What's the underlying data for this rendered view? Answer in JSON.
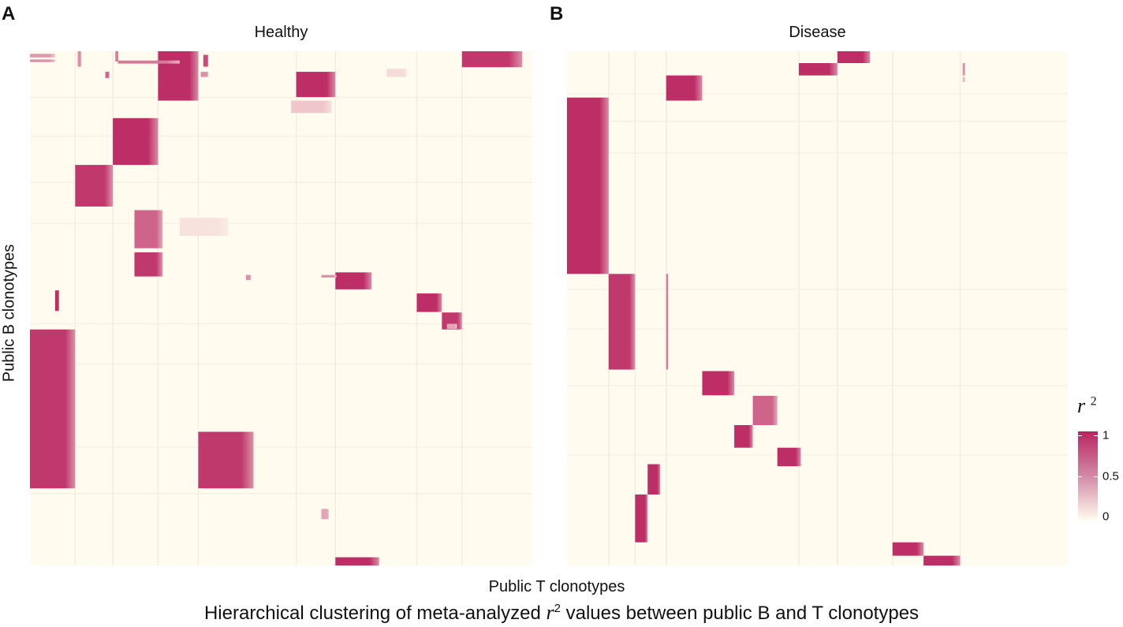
{
  "colors": {
    "low": "#fffcef",
    "mid": "#e9c3cc",
    "high": "#b9235f",
    "background": "#ffffff"
  },
  "panels": [
    {
      "letter": "A",
      "title": "Healthy"
    },
    {
      "letter": "B",
      "title": "Disease"
    }
  ],
  "axes": {
    "ylabel": "Public B clonotypes",
    "xlabel": "Public T clonotypes"
  },
  "caption": {
    "prefix": "Hierarchical clustering of meta-analyzed ",
    "var": "r",
    "sup": "2",
    "suffix": " values between public B and T clonotypes"
  },
  "legend": {
    "title": "r",
    "title_sup": "2",
    "ticks": [
      {
        "value": 1,
        "label": "1"
      },
      {
        "value": 0.5,
        "label": "0.5"
      },
      {
        "value": 0,
        "label": "0"
      }
    ]
  },
  "chart_data": [
    {
      "type": "heatmap",
      "title": "Healthy",
      "xlabel": "Public T clonotypes",
      "ylabel": "Public B clonotypes",
      "value_range": [
        0,
        1
      ],
      "x_range": [
        0,
        1
      ],
      "y_range": [
        0,
        1
      ],
      "clusters": [
        {
          "x": [
            0.0,
            0.09
          ],
          "y": [
            0.541,
            0.85
          ],
          "value": 0.9
        },
        {
          "x": [
            0.255,
            0.335
          ],
          "y": [
            0.0,
            0.096
          ],
          "value": 0.95
        },
        {
          "x": [
            0.09,
            0.165
          ],
          "y": [
            0.221,
            0.302
          ],
          "value": 0.9
        },
        {
          "x": [
            0.165,
            0.255
          ],
          "y": [
            0.13,
            0.221
          ],
          "value": 0.95
        },
        {
          "x": [
            0.335,
            0.445
          ],
          "y": [
            0.74,
            0.85
          ],
          "value": 0.9
        },
        {
          "x": [
            0.53,
            0.608
          ],
          "y": [
            0.04,
            0.089
          ],
          "value": 0.95
        },
        {
          "x": [
            0.208,
            0.264
          ],
          "y": [
            0.309,
            0.383
          ],
          "value": 0.7
        },
        {
          "x": [
            0.208,
            0.264
          ],
          "y": [
            0.391,
            0.438
          ],
          "value": 0.9
        },
        {
          "x": [
            0.608,
            0.695
          ],
          "y": [
            0.984,
            1.0
          ],
          "value": 0.95
        },
        {
          "x": [
            0.608,
            0.68
          ],
          "y": [
            0.43,
            0.463
          ],
          "value": 0.95
        },
        {
          "x": [
            0.77,
            0.82
          ],
          "y": [
            0.471,
            0.507
          ],
          "value": 0.95
        },
        {
          "x": [
            0.82,
            0.86
          ],
          "y": [
            0.508,
            0.541
          ],
          "value": 0.9
        },
        {
          "x": [
            0.86,
            0.98
          ],
          "y": [
            0.0,
            0.031
          ],
          "value": 0.9
        },
        {
          "x": [
            0.175,
            0.298
          ],
          "y": [
            0.018,
            0.024
          ],
          "value": 0.6
        },
        {
          "x": [
            0.0,
            0.05
          ],
          "y": [
            0.005,
            0.012
          ],
          "value": 0.45
        },
        {
          "x": [
            0.0,
            0.05
          ],
          "y": [
            0.016,
            0.021
          ],
          "value": 0.5
        },
        {
          "x": [
            0.52,
            0.6
          ],
          "y": [
            0.096,
            0.12
          ],
          "value": 0.25
        },
        {
          "x": [
            0.298,
            0.395
          ],
          "y": [
            0.324,
            0.359
          ],
          "value": 0.12
        },
        {
          "x": [
            0.71,
            0.75
          ],
          "y": [
            0.034,
            0.05
          ],
          "value": 0.15
        },
        {
          "x": [
            0.05,
            0.058
          ],
          "y": [
            0.465,
            0.505
          ],
          "value": 0.95
        },
        {
          "x": [
            0.345,
            0.355
          ],
          "y": [
            0.007,
            0.03
          ],
          "value": 0.8
        },
        {
          "x": [
            0.15,
            0.158
          ],
          "y": [
            0.04,
            0.052
          ],
          "value": 0.7
        },
        {
          "x": [
            0.095,
            0.102
          ],
          "y": [
            0.0,
            0.03
          ],
          "value": 0.5
        },
        {
          "x": [
            0.17,
            0.176
          ],
          "y": [
            0.0,
            0.02
          ],
          "value": 0.6
        },
        {
          "x": [
            0.34,
            0.355
          ],
          "y": [
            0.04,
            0.05
          ],
          "value": 0.5
        },
        {
          "x": [
            0.58,
            0.595
          ],
          "y": [
            0.89,
            0.91
          ],
          "value": 0.4
        },
        {
          "x": [
            0.58,
            0.61
          ],
          "y": [
            0.435,
            0.44
          ],
          "value": 0.5
        },
        {
          "x": [
            0.43,
            0.44
          ],
          "y": [
            0.435,
            0.445
          ],
          "value": 0.5
        },
        {
          "x": [
            0.83,
            0.85
          ],
          "y": [
            0.53,
            0.54
          ],
          "value": 0.4
        }
      ]
    },
    {
      "type": "heatmap",
      "title": "Disease",
      "xlabel": "Public T clonotypes",
      "ylabel": "Public B clonotypes",
      "value_range": [
        0,
        1
      ],
      "x_range": [
        0,
        1
      ],
      "y_range": [
        0,
        1
      ],
      "clusters": [
        {
          "x": [
            0.0,
            0.0831
          ],
          "y": [
            0.09,
            0.433
          ],
          "value": 0.95
        },
        {
          "x": [
            0.0831,
            0.136
          ],
          "y": [
            0.433,
            0.619
          ],
          "value": 0.9
        },
        {
          "x": [
            0.198,
            0.27
          ],
          "y": [
            0.047,
            0.096
          ],
          "value": 0.95
        },
        {
          "x": [
            0.54,
            0.605
          ],
          "y": [
            0.0,
            0.023
          ],
          "value": 0.95
        },
        {
          "x": [
            0.463,
            0.54
          ],
          "y": [
            0.023,
            0.047
          ],
          "value": 0.95
        },
        {
          "x": [
            0.27,
            0.334
          ],
          "y": [
            0.622,
            0.669
          ],
          "value": 0.95
        },
        {
          "x": [
            0.371,
            0.42
          ],
          "y": [
            0.67,
            0.727
          ],
          "value": 0.7
        },
        {
          "x": [
            0.334,
            0.371
          ],
          "y": [
            0.727,
            0.771
          ],
          "value": 0.95
        },
        {
          "x": [
            0.42,
            0.467
          ],
          "y": [
            0.771,
            0.807
          ],
          "value": 0.95
        },
        {
          "x": [
            0.161,
            0.186
          ],
          "y": [
            0.803,
            0.862
          ],
          "value": 0.95
        },
        {
          "x": [
            0.136,
            0.161
          ],
          "y": [
            0.862,
            0.955
          ],
          "value": 0.95
        },
        {
          "x": [
            0.65,
            0.712
          ],
          "y": [
            0.955,
            0.981
          ],
          "value": 0.95
        },
        {
          "x": [
            0.712,
            0.785
          ],
          "y": [
            0.981,
            1.0
          ],
          "value": 0.95
        },
        {
          "x": [
            0.198,
            0.202
          ],
          "y": [
            0.433,
            0.619
          ],
          "value": 0.6
        },
        {
          "x": [
            0.79,
            0.795
          ],
          "y": [
            0.023,
            0.047
          ],
          "value": 0.5
        },
        {
          "x": [
            0.79,
            0.795
          ],
          "y": [
            0.05,
            0.06
          ],
          "value": 0.3
        }
      ]
    }
  ]
}
